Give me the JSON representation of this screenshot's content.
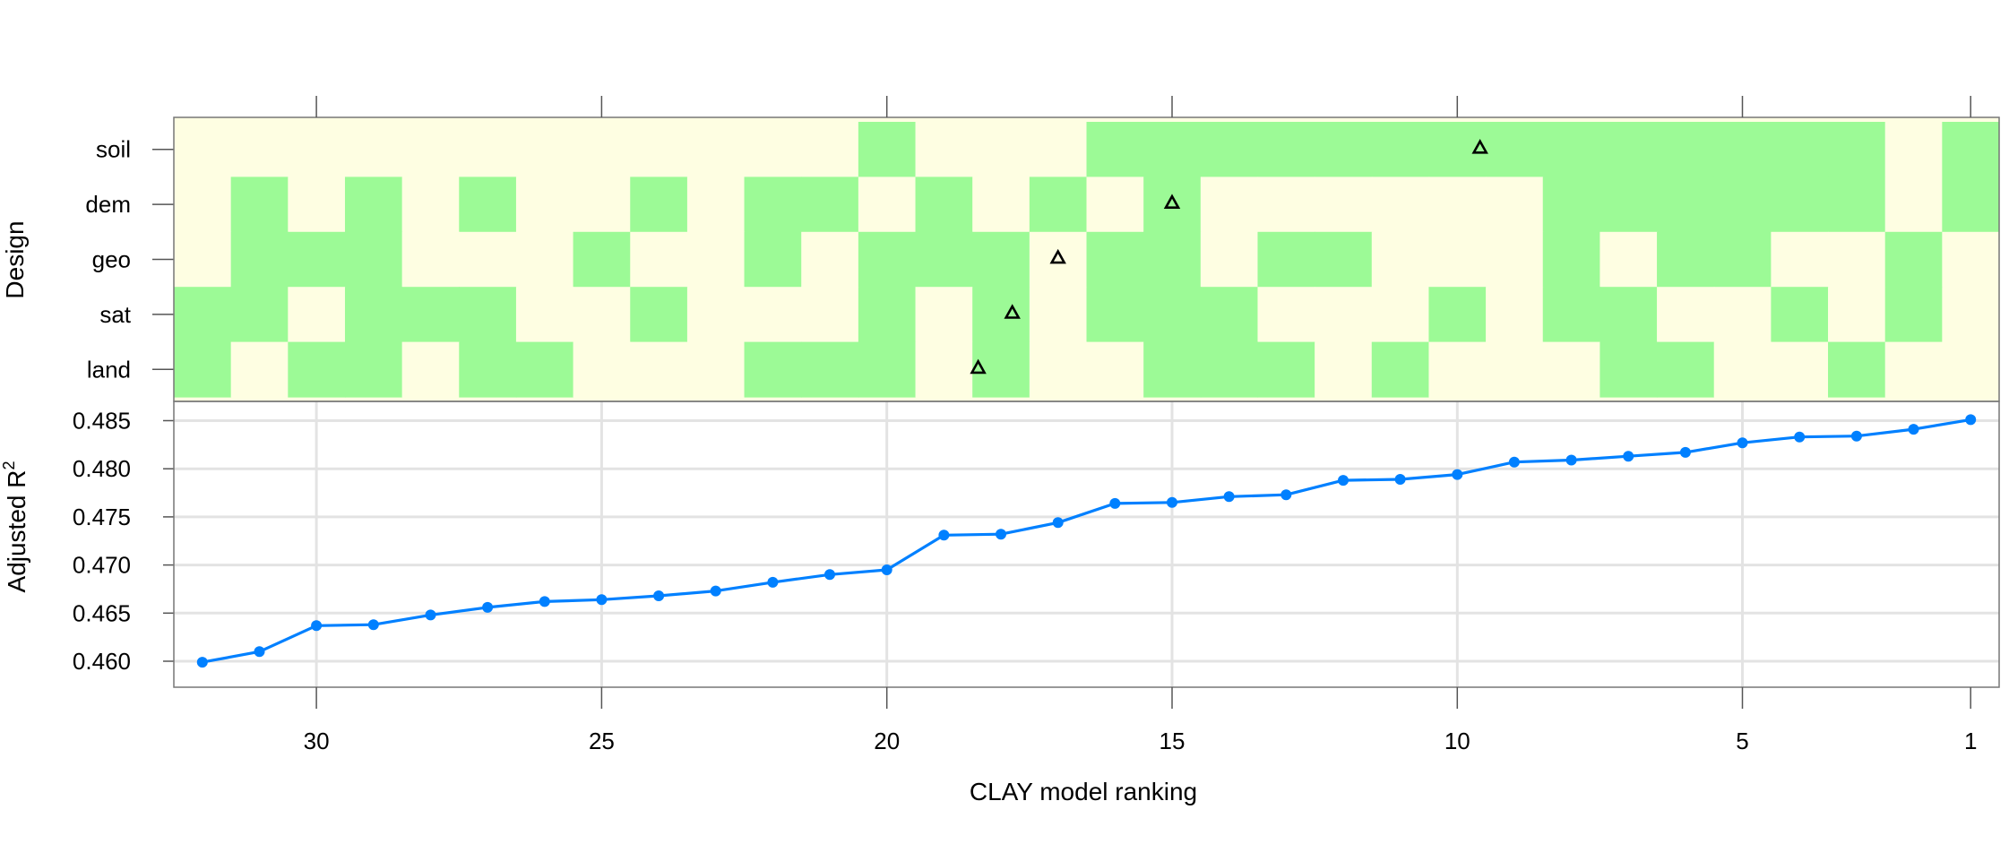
{
  "chart_data": [
    {
      "type": "heatmap",
      "ylabel": "Design",
      "rows": [
        "soil",
        "dem",
        "geo",
        "sat",
        "land"
      ],
      "x": [
        32,
        31,
        30,
        29,
        28,
        27,
        26,
        25,
        24,
        23,
        22,
        21,
        20,
        19,
        18,
        17,
        16,
        15,
        14,
        13,
        12,
        11,
        10,
        9,
        8,
        7,
        6,
        5,
        4,
        3,
        2,
        1
      ],
      "cells": {
        "soil": [
          0,
          0,
          0,
          0,
          0,
          0,
          0,
          0,
          0,
          0,
          0,
          0,
          1,
          0,
          0,
          0,
          1,
          1,
          1,
          1,
          1,
          1,
          1,
          1,
          1,
          1,
          1,
          1,
          1,
          1,
          0,
          1
        ],
        "dem": [
          0,
          1,
          0,
          1,
          0,
          1,
          0,
          0,
          1,
          0,
          1,
          1,
          0,
          1,
          0,
          1,
          0,
          1,
          0,
          0,
          0,
          0,
          0,
          0,
          1,
          1,
          1,
          1,
          1,
          1,
          0,
          1
        ],
        "geo": [
          0,
          1,
          1,
          1,
          0,
          0,
          0,
          1,
          0,
          0,
          1,
          0,
          1,
          1,
          1,
          0,
          1,
          1,
          0,
          1,
          1,
          0,
          0,
          0,
          1,
          0,
          1,
          1,
          0,
          0,
          1,
          0
        ],
        "sat": [
          1,
          1,
          0,
          1,
          1,
          1,
          0,
          0,
          1,
          0,
          0,
          0,
          1,
          0,
          1,
          0,
          1,
          1,
          1,
          0,
          0,
          0,
          1,
          0,
          1,
          1,
          0,
          0,
          1,
          0,
          1,
          0
        ],
        "land": [
          1,
          0,
          1,
          1,
          0,
          1,
          1,
          0,
          0,
          0,
          1,
          1,
          1,
          0,
          1,
          0,
          0,
          1,
          1,
          1,
          0,
          1,
          0,
          0,
          0,
          1,
          1,
          0,
          0,
          1,
          0,
          0
        ]
      },
      "colors": {
        "on": "#9cfa96",
        "off": "#fefee2"
      },
      "markers": [
        {
          "row": "soil",
          "x": 9.6
        },
        {
          "row": "dem",
          "x": 15.0
        },
        {
          "row": "geo",
          "x": 17.0
        },
        {
          "row": "sat",
          "x": 17.8
        },
        {
          "row": "land",
          "x": 18.4
        }
      ]
    },
    {
      "type": "line",
      "xlabel": "CLAY model ranking",
      "ylabel": "Adjusted R",
      "ylabel_superscript": "2",
      "xlim": [
        32.5,
        0.5
      ],
      "ylim": [
        0.4573,
        0.487
      ],
      "x": [
        32,
        31,
        30,
        29,
        28,
        27,
        26,
        25,
        24,
        23,
        22,
        21,
        20,
        19,
        18,
        17,
        16,
        15,
        14,
        13,
        12,
        11,
        10,
        9,
        8,
        7,
        6,
        5,
        4,
        3,
        2,
        1
      ],
      "series": [
        {
          "values": [
            0.4599,
            0.461,
            0.4637,
            0.4638,
            0.4648,
            0.4656,
            0.4662,
            0.4664,
            0.4668,
            0.4673,
            0.4682,
            0.469,
            0.4695,
            0.4731,
            0.4732,
            0.4744,
            0.4764,
            0.4765,
            0.4771,
            0.4773,
            0.4788,
            0.4789,
            0.4794,
            0.4807,
            0.4809,
            0.4813,
            0.4817,
            0.4827,
            0.4833,
            0.4834,
            0.4841,
            0.4851
          ],
          "color": "#0080ff"
        }
      ],
      "xticks": [
        30,
        25,
        20,
        15,
        10,
        5,
        1
      ],
      "xtick_labels": [
        "30",
        "25",
        "20",
        "15",
        "10",
        "5",
        "1"
      ],
      "yticks": [
        0.46,
        0.465,
        0.47,
        0.475,
        0.48,
        0.485
      ],
      "ytick_labels": [
        "0.460",
        "0.465",
        "0.470",
        "0.475",
        "0.480",
        "0.485"
      ],
      "grid": true
    }
  ]
}
